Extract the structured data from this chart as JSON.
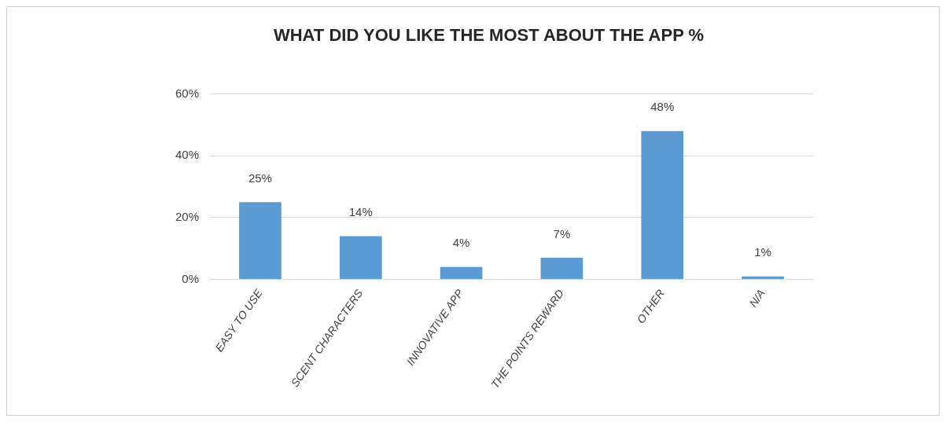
{
  "chart_data": {
    "type": "bar",
    "title": "WHAT DID YOU LIKE THE MOST ABOUT THE APP %",
    "categories": [
      "EASY TO USE",
      "SCENT CHARACTERS",
      "INNOVATIVE APP",
      "THE POINTS REWARD",
      "OTHER",
      "N/A"
    ],
    "values": [
      25,
      14,
      4,
      7,
      48,
      1
    ],
    "color": "#5b9bd5",
    "value_labels": [
      "25%",
      "14%",
      "4%",
      "7%",
      "48%",
      "1%"
    ],
    "ylim": [
      0,
      60
    ],
    "yticks": [
      {
        "value": 0,
        "label": "0%"
      },
      {
        "value": 20,
        "label": "20%"
      },
      {
        "value": 40,
        "label": "40%"
      },
      {
        "value": 60,
        "label": "60%"
      }
    ],
    "grid": "y",
    "legend": false
  }
}
